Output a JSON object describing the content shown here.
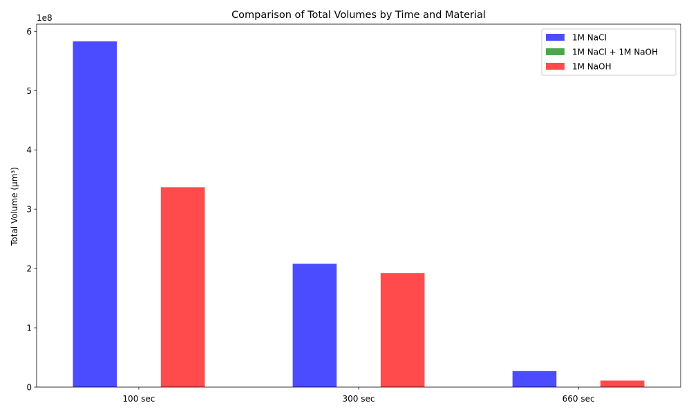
{
  "chart_data": {
    "type": "bar",
    "title": "Comparison of Total Volumes by Time and Material",
    "xlabel": "",
    "ylabel": "Total Volume (µm³)",
    "y_scale_label": "1e8",
    "categories": [
      "100 sec",
      "300 sec",
      "660 sec"
    ],
    "ylim": [
      0,
      6.12
    ],
    "y_ticks": [
      0,
      1,
      2,
      3,
      4,
      5,
      6
    ],
    "y_tick_labels": [
      "0",
      "1",
      "2",
      "3",
      "4",
      "5",
      "6"
    ],
    "series": [
      {
        "name": "1M NaCl",
        "color": "#4b4bff",
        "values": [
          5.83,
          2.08,
          0.27
        ]
      },
      {
        "name": "1M NaCl + 1M NaOH",
        "color": "#4da64d",
        "values": [
          0,
          0,
          0
        ]
      },
      {
        "name": "1M NaOH",
        "color": "#ff4b4b",
        "values": [
          3.37,
          1.92,
          0.11
        ]
      }
    ],
    "legend_position": "top-right",
    "grid": false
  }
}
